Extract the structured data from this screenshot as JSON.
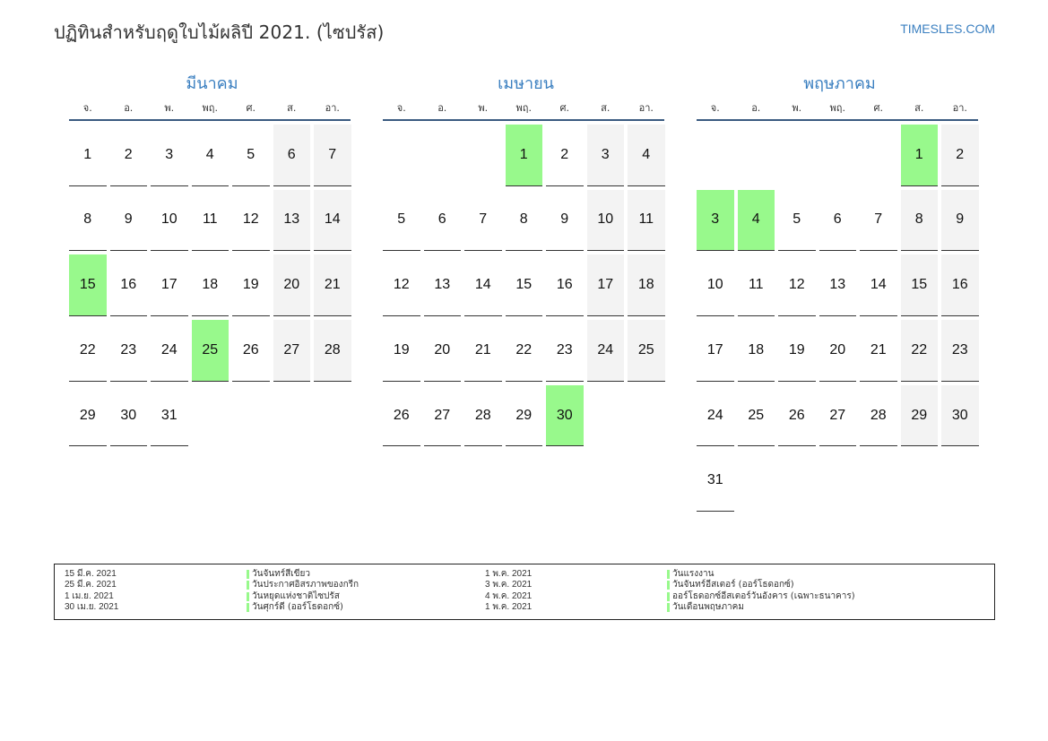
{
  "title": "ปฏิทินสำหรับฤดูใบไม้ผลิปี 2021. (ไซปรัส)",
  "brand": "TIMESLES.COM",
  "colors": {
    "accent": "#3a7fc0",
    "holiday": "#98f98c",
    "weekend": "#f3f3f3"
  },
  "weekdays": [
    "จ.",
    "อ.",
    "พ.",
    "พฤ.",
    "ศ.",
    "ส.",
    "อา."
  ],
  "months": [
    {
      "name": "มีนาคม",
      "offset": 0,
      "days": 31,
      "holidays": [
        15,
        25
      ]
    },
    {
      "name": "เมษายน",
      "offset": 3,
      "days": 30,
      "holidays": [
        1,
        30
      ]
    },
    {
      "name": "พฤษภาคม",
      "offset": 5,
      "days": 31,
      "holidays": [
        1,
        3,
        4
      ]
    }
  ],
  "legend": {
    "left": [
      {
        "date": "15 มี.ค. 2021",
        "name": "วันจันทร์สีเขียว"
      },
      {
        "date": "25 มี.ค. 2021",
        "name": "วันประกาศอิสรภาพของกรีก"
      },
      {
        "date": "1 เม.ย. 2021",
        "name": "วันหยุดแห่งชาติไซปรัส"
      },
      {
        "date": "30 เม.ย. 2021",
        "name": "วันศุกร์ดี (ออร์โธดอกซ์)"
      }
    ],
    "right": [
      {
        "date": "1 พ.ค. 2021",
        "name": "วันแรงงาน"
      },
      {
        "date": "3 พ.ค. 2021",
        "name": "วันจันทร์อีสเตอร์ (ออร์โธดอกซ์)"
      },
      {
        "date": "4 พ.ค. 2021",
        "name": "ออร์โธดอกซ์อีสเตอร์วันอังคาร (เฉพาะธนาคาร)"
      },
      {
        "date": "1 พ.ค. 2021",
        "name": "วันเดือนพฤษภาคม"
      }
    ]
  }
}
